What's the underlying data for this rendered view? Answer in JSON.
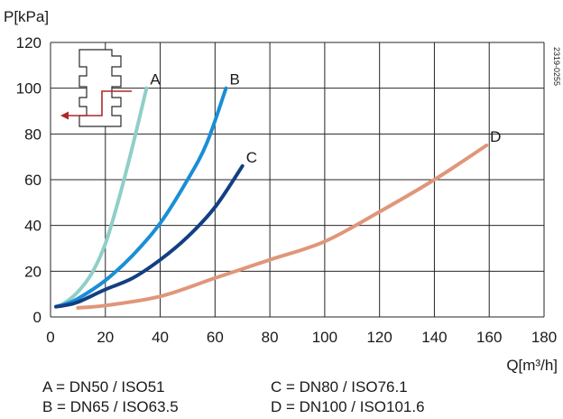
{
  "figure_code": "2319-0255",
  "legend_rows": [
    [
      "A = DN50 / ISO51",
      "C = DN80 / ISO76.1"
    ],
    [
      "B = DN65 / ISO63.5",
      "D = DN100 / ISO101.6"
    ]
  ],
  "chart_data": {
    "type": "line",
    "ylabel": "P[kPa]",
    "xlabel": "Q[m³/h]",
    "xlim": [
      0,
      180
    ],
    "ylim": [
      0,
      120
    ],
    "x_ticks": [
      0,
      20,
      40,
      60,
      80,
      100,
      120,
      140,
      160,
      180
    ],
    "y_ticks": [
      0,
      20,
      40,
      60,
      80,
      100,
      120
    ],
    "grid": true,
    "series": [
      {
        "name": "A",
        "color": "#8fcfc7",
        "x": [
          2,
          5,
          10,
          15,
          20,
          25,
          30,
          35
        ],
        "y": [
          4.5,
          6,
          11,
          19,
          32,
          52,
          75,
          100
        ]
      },
      {
        "name": "B",
        "color": "#1a8ed6",
        "x": [
          2,
          5,
          10,
          20,
          30,
          40,
          50,
          57,
          64
        ],
        "y": [
          4.5,
          5.5,
          8,
          16,
          27,
          41,
          60,
          76,
          100
        ]
      },
      {
        "name": "C",
        "color": "#133f82",
        "x": [
          2,
          5,
          10,
          20,
          30,
          40,
          50,
          60,
          70
        ],
        "y": [
          4.5,
          5,
          6.5,
          12,
          17,
          25,
          35,
          48,
          66
        ]
      },
      {
        "name": "D",
        "color": "#e0967a",
        "x": [
          10,
          20,
          40,
          60,
          80,
          100,
          120,
          140,
          159
        ],
        "y": [
          4,
          5,
          9,
          17,
          25,
          33,
          46,
          60,
          75
        ]
      }
    ]
  }
}
